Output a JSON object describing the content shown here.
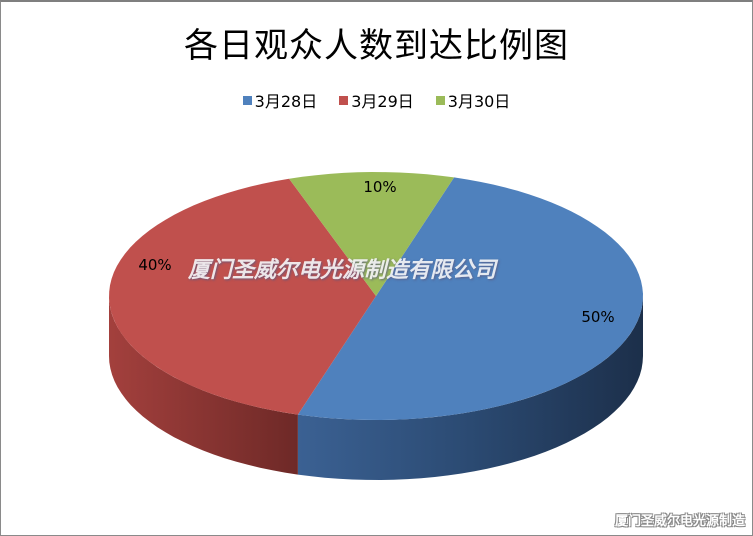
{
  "chart_data": {
    "type": "pie",
    "style": "3d",
    "title": "各日观众人数到达比例图",
    "categories": [
      "3月28日",
      "3月29日",
      "3月30日"
    ],
    "values": [
      50,
      40,
      10
    ],
    "data_labels": [
      "50%",
      "40%",
      "10%"
    ],
    "colors": [
      "#4f81bd",
      "#c0504d",
      "#9bbb59"
    ],
    "legend_position": "top"
  },
  "watermark": {
    "center": "厦门圣威尔电光源制造有限公司",
    "corner": "厦门圣威尔电光源制造"
  }
}
